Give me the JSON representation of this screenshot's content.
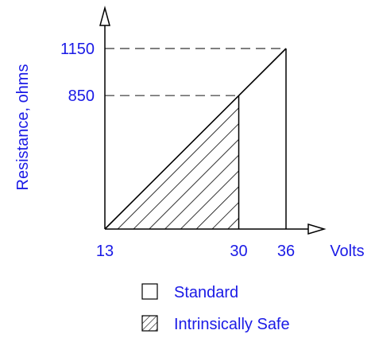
{
  "colors": {
    "text": "#1a1ae6",
    "line": "#000000",
    "dash": "#555555"
  },
  "chart_data": {
    "type": "line",
    "xlabel": "Volts",
    "ylabel": "Resistance, ohms",
    "x_ticks": [
      {
        "value": 13,
        "label": "13"
      },
      {
        "value": 30,
        "label": "30"
      },
      {
        "value": 36,
        "label": "36"
      }
    ],
    "y_ticks": [
      {
        "value": 850,
        "label": "850"
      },
      {
        "value": 1150,
        "label": "1150"
      }
    ],
    "series": [
      {
        "name": "Standard",
        "points": [
          [
            13,
            0
          ],
          [
            36,
            1150
          ]
        ]
      }
    ],
    "shaded_regions": [
      {
        "name": "Intrinsically Safe",
        "polygon": [
          [
            13,
            0
          ],
          [
            30,
            850
          ],
          [
            30,
            0
          ]
        ]
      }
    ],
    "guides": [
      {
        "from": [
          13,
          850
        ],
        "to": [
          30,
          850
        ]
      },
      {
        "from": [
          13,
          1150
        ],
        "to": [
          36,
          1150
        ]
      }
    ],
    "drop_lines": [
      {
        "from": [
          30,
          850
        ],
        "to": [
          30,
          0
        ]
      },
      {
        "from": [
          36,
          1150
        ],
        "to": [
          36,
          0
        ]
      }
    ],
    "legend": [
      {
        "label": "Standard",
        "swatch": "empty-box"
      },
      {
        "label": "Intrinsically Safe",
        "swatch": "hatched-box"
      }
    ]
  }
}
